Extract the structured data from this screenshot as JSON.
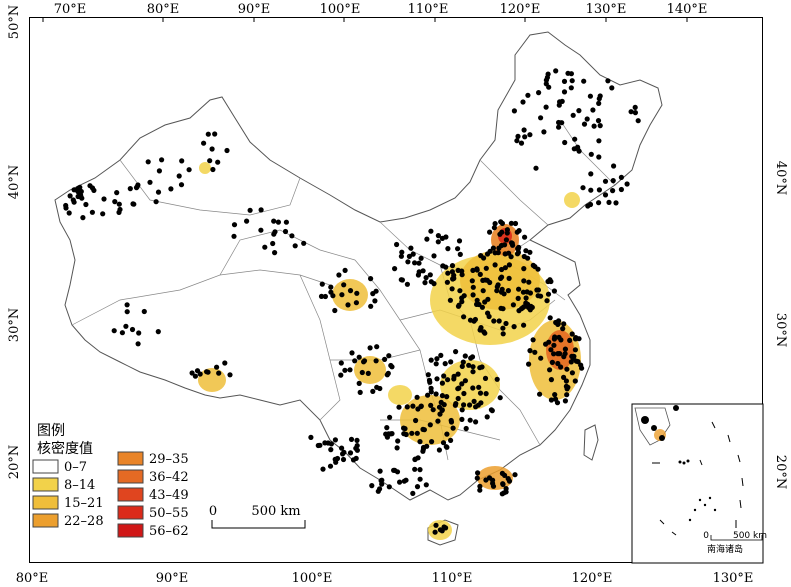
{
  "axes": {
    "top_labels": [
      "70°E",
      "80°E",
      "90°E",
      "100°E",
      "110°E",
      "120°E",
      "130°E",
      "140°E"
    ],
    "bottom_labels": [
      "80°E",
      "90°E",
      "100°E",
      "110°E",
      "120°E",
      "130°E"
    ],
    "left_labels": [
      "50°N",
      "40°N",
      "30°N",
      "20°N"
    ],
    "right_labels": [
      "40°N",
      "30°N",
      "20°N"
    ]
  },
  "legend": {
    "title": "图例",
    "subtitle": "核密度值",
    "classes": [
      {
        "label": "0–7",
        "color": "#ffffff"
      },
      {
        "label": "8–14",
        "color": "#f2d24a"
      },
      {
        "label": "15–21",
        "color": "#efbe3a"
      },
      {
        "label": "22–28",
        "color": "#ec9f2e"
      },
      {
        "label": "29–35",
        "color": "#e98428"
      },
      {
        "label": "36–42",
        "color": "#e46a24"
      },
      {
        "label": "43–49",
        "color": "#e0451f"
      },
      {
        "label": "50–55",
        "color": "#db2a1a"
      },
      {
        "label": "56–62",
        "color": "#d01717"
      }
    ]
  },
  "scale_bar": {
    "zero": "0",
    "distance": "500 km"
  },
  "inset": {
    "scale_zero": "0",
    "scale_distance": "500 km",
    "caption": "南海诸岛"
  }
}
